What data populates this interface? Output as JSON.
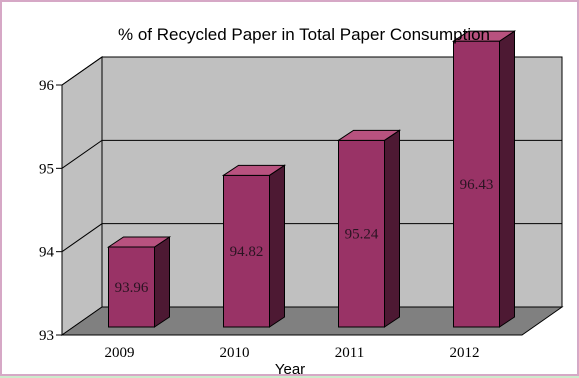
{
  "chart_data": {
    "type": "bar",
    "title": "% of Recycled Paper in Total Paper Consumption",
    "xlabel": "Year",
    "ylabel": "",
    "categories": [
      "2009",
      "2010",
      "2011",
      "2012"
    ],
    "values": [
      93.96,
      94.82,
      95.24,
      96.43
    ],
    "data_labels": [
      "93.96",
      "94.82",
      "95.24",
      "96.43"
    ],
    "ylim": [
      93,
      96
    ],
    "y_ticks": [
      "93",
      "94",
      "95",
      "96"
    ],
    "y_tick_values": [
      93,
      94,
      95,
      96
    ],
    "grid": true,
    "style": "3d-column",
    "colors": {
      "bar_front": "#993366",
      "bar_side": "#4d1933",
      "bar_top": "#b8527f",
      "wall": "#c0c0c0",
      "floor": "#808080",
      "frame_border": "#d6a8c6",
      "page_background": "#ccebcc"
    }
  }
}
